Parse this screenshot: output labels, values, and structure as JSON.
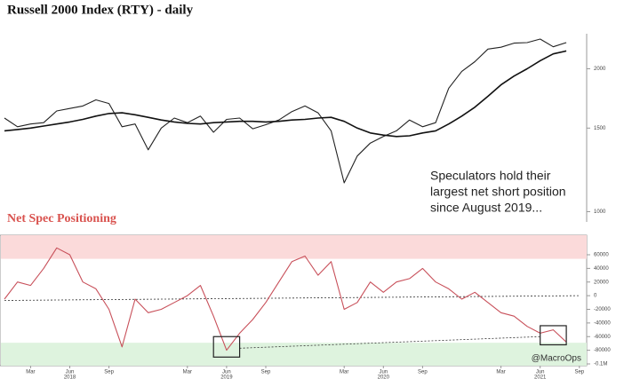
{
  "chart_data": [
    {
      "type": "line",
      "title": "Russell 2000 Index (RTY) - daily",
      "log_scale": true,
      "x": [
        "2018-01",
        "2018-02",
        "2018-03",
        "2018-04",
        "2018-05",
        "2018-06",
        "2018-07",
        "2018-08",
        "2018-09",
        "2018-10",
        "2018-11",
        "2018-12",
        "2019-01",
        "2019-02",
        "2019-03",
        "2019-04",
        "2019-05",
        "2019-06",
        "2019-07",
        "2019-08",
        "2019-09",
        "2019-10",
        "2019-11",
        "2019-12",
        "2020-01",
        "2020-02",
        "2020-03",
        "2020-04",
        "2020-05",
        "2020-06",
        "2020-07",
        "2020-08",
        "2020-09",
        "2020-10",
        "2020-11",
        "2020-12",
        "2021-01",
        "2021-02",
        "2021-03",
        "2021-04",
        "2021-05",
        "2021-06",
        "2021-07",
        "2021-08"
      ],
      "series": [
        {
          "color": "#222222",
          "values": [
            1575,
            1510,
            1530,
            1540,
            1630,
            1650,
            1670,
            1720,
            1690,
            1510,
            1530,
            1350,
            1500,
            1575,
            1540,
            1590,
            1470,
            1565,
            1575,
            1495,
            1525,
            1560,
            1625,
            1670,
            1615,
            1480,
            1150,
            1310,
            1395,
            1440,
            1480,
            1560,
            1510,
            1540,
            1820,
            1975,
            2070,
            2200,
            2220,
            2265,
            2270,
            2310,
            2225,
            2270
          ]
        },
        {
          "color": "#111111",
          "values": [
            1480,
            1490,
            1500,
            1515,
            1530,
            1545,
            1565,
            1590,
            1610,
            1615,
            1600,
            1580,
            1560,
            1545,
            1535,
            1530,
            1540,
            1545,
            1550,
            1550,
            1545,
            1550,
            1560,
            1565,
            1575,
            1580,
            1550,
            1500,
            1465,
            1450,
            1440,
            1445,
            1465,
            1480,
            1530,
            1590,
            1660,
            1750,
            1850,
            1930,
            2000,
            2080,
            2150,
            2180
          ]
        }
      ],
      "ylim": [
        960,
        2350
      ],
      "yticks": [
        1000,
        1500,
        2000
      ],
      "annotation_lines": [
        "Speculators hold their",
        "largest net short position",
        "since August 2019..."
      ]
    },
    {
      "type": "line",
      "title": "Net Spec Positioning",
      "x": [
        "2018-01",
        "2018-02",
        "2018-03",
        "2018-04",
        "2018-05",
        "2018-06",
        "2018-07",
        "2018-08",
        "2018-09",
        "2018-10",
        "2018-11",
        "2018-12",
        "2019-01",
        "2019-02",
        "2019-03",
        "2019-04",
        "2019-05",
        "2019-06",
        "2019-07",
        "2019-08",
        "2019-09",
        "2019-10",
        "2019-11",
        "2019-12",
        "2020-01",
        "2020-02",
        "2020-03",
        "2020-04",
        "2020-05",
        "2020-06",
        "2020-07",
        "2020-08",
        "2020-09",
        "2020-10",
        "2020-11",
        "2020-12",
        "2021-01",
        "2021-02",
        "2021-03",
        "2021-04",
        "2021-05",
        "2021-06",
        "2021-07",
        "2021-08"
      ],
      "series": [
        {
          "color": "#c8505a",
          "values": [
            -5000,
            20000,
            15000,
            40000,
            70000,
            60000,
            20000,
            10000,
            -20000,
            -75000,
            -5000,
            -25000,
            -20000,
            -10000,
            0,
            15000,
            -30000,
            -80000,
            -55000,
            -35000,
            -10000,
            20000,
            50000,
            58000,
            30000,
            50000,
            -20000,
            -10000,
            20000,
            5000,
            20000,
            25000,
            40000,
            20000,
            10000,
            -5000,
            5000,
            -10000,
            -25000,
            -30000,
            -45000,
            -55000,
            -50000,
            -68000
          ]
        }
      ],
      "ylim": [
        -102600,
        88600
      ],
      "yticks": [
        60000,
        40000,
        20000,
        0,
        -20000,
        -40000,
        -60000,
        -80000,
        {
          "value": -100000,
          "label": "-0.1M"
        }
      ],
      "bands": [
        {
          "from": 54000,
          "to": 88600,
          "color": "#fbdada"
        },
        {
          "from": -102600,
          "to": -69000,
          "color": "#def3de"
        }
      ],
      "dashed_lines": [
        {
          "x": [
            "2018-01",
            "2021-09"
          ],
          "y": [
            -7000,
            0
          ]
        },
        {
          "x": [
            "2019-07",
            "2021-06"
          ],
          "y": [
            -77000,
            -60000
          ]
        }
      ],
      "boxes": [
        {
          "x": [
            "2019-05",
            "2019-07"
          ],
          "y": [
            -60000,
            -90000
          ]
        },
        {
          "x": [
            "2021-06",
            "2021-08"
          ],
          "y": [
            -44000,
            -72000
          ]
        }
      ],
      "xticks": [
        {
          "value": "2018-03",
          "label": "Mar"
        },
        {
          "value": "2018-06",
          "label": "Jun"
        },
        {
          "value": "2018-09",
          "label": "Sep"
        },
        {
          "value": "2019-03",
          "label": "Mar"
        },
        {
          "value": "2019-06",
          "label": "Jun"
        },
        {
          "value": "2019-09",
          "label": "Sep"
        },
        {
          "value": "2020-03",
          "label": "Mar"
        },
        {
          "value": "2020-06",
          "label": "Jun"
        },
        {
          "value": "2020-09",
          "label": "Sep"
        },
        {
          "value": "2021-03",
          "label": "Mar"
        },
        {
          "value": "2021-06",
          "label": "Jun"
        },
        {
          "value": "2021-09",
          "label": "Sep"
        }
      ],
      "year_ticks": [
        {
          "value": "2018-06",
          "label": "2018"
        },
        {
          "value": "2019-06",
          "label": "2019"
        },
        {
          "value": "2020-06",
          "label": "2020"
        },
        {
          "value": "2021-06",
          "label": "2021"
        }
      ],
      "watermark": "@MacroOps"
    }
  ]
}
